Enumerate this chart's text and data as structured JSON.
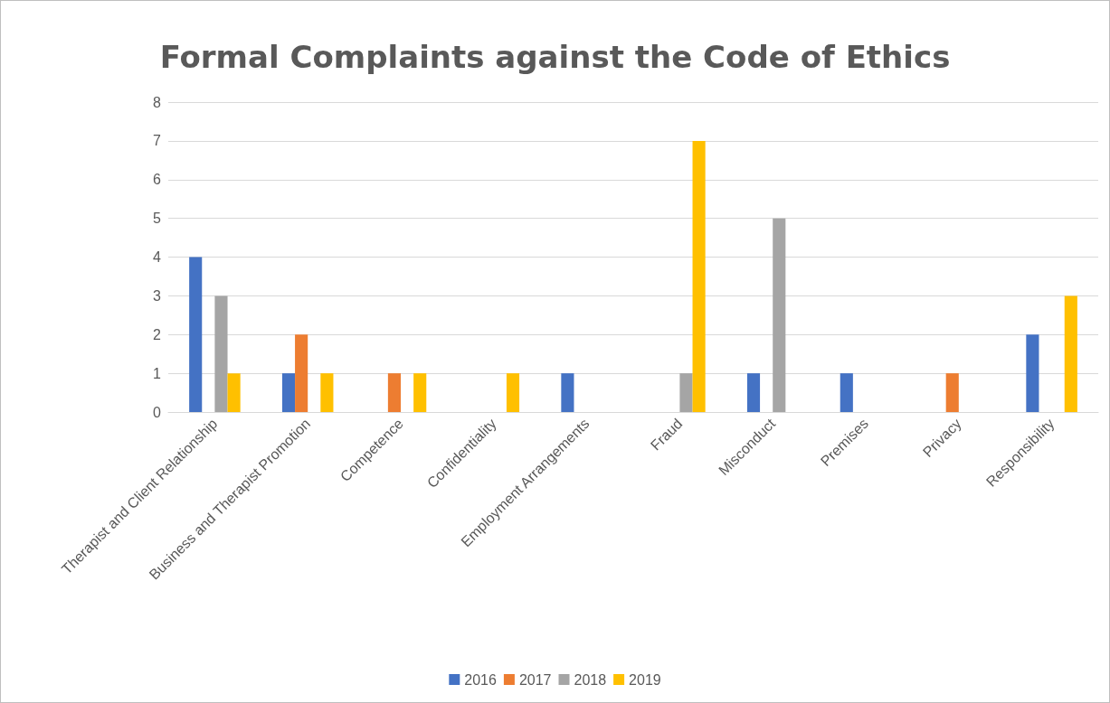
{
  "chart_data": {
    "type": "bar",
    "title": "Formal Complaints against the Code of Ethics",
    "categories": [
      "Therapist and Client Relationship",
      "Business and Therapist Promotion",
      "Competence",
      "Confidentiality",
      "Employment Arrangements",
      "Fraud",
      "Misconduct",
      "Premises",
      "Privacy",
      "Responsibility"
    ],
    "series": [
      {
        "name": "2016",
        "color": "#4472c4",
        "values": [
          4,
          1,
          0,
          0,
          1,
          0,
          1,
          1,
          0,
          2
        ]
      },
      {
        "name": "2017",
        "color": "#ed7d31",
        "values": [
          0,
          2,
          1,
          0,
          0,
          0,
          0,
          0,
          1,
          0
        ]
      },
      {
        "name": "2018",
        "color": "#a5a5a5",
        "values": [
          3,
          0,
          0,
          0,
          0,
          1,
          5,
          0,
          0,
          0
        ]
      },
      {
        "name": "2019",
        "color": "#ffc000",
        "values": [
          1,
          1,
          1,
          1,
          0,
          7,
          0,
          0,
          0,
          3
        ]
      }
    ],
    "ylim": [
      0,
      8
    ],
    "yticks": [
      0,
      1,
      2,
      3,
      4,
      5,
      6,
      7,
      8
    ],
    "grid": "y",
    "legend": "bottom"
  }
}
